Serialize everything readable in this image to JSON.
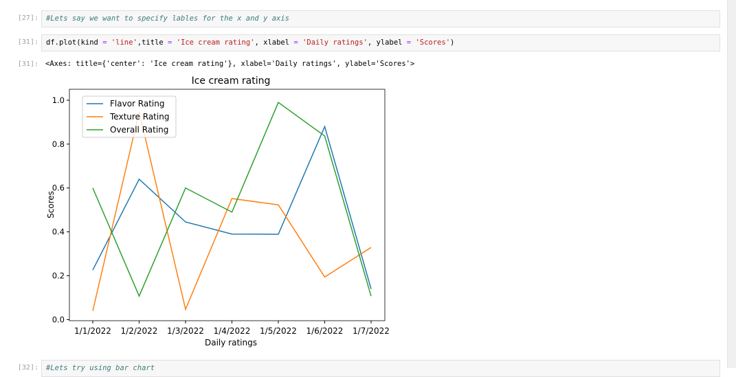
{
  "cells": [
    {
      "prompt": "[27]:",
      "tokens": [
        {
          "text": "#Lets say we want to specify lables for the x and y axis",
          "kind": "comment"
        }
      ]
    },
    {
      "prompt": "[31]:",
      "tokens": [
        {
          "text": "df.plot(kind ",
          "kind": "plain"
        },
        {
          "text": "=",
          "kind": "operator"
        },
        {
          "text": " ",
          "kind": "plain"
        },
        {
          "text": "'line'",
          "kind": "string"
        },
        {
          "text": ",title ",
          "kind": "plain"
        },
        {
          "text": "=",
          "kind": "operator"
        },
        {
          "text": " ",
          "kind": "plain"
        },
        {
          "text": "'Ice cream rating'",
          "kind": "string"
        },
        {
          "text": ", xlabel ",
          "kind": "plain"
        },
        {
          "text": "=",
          "kind": "operator"
        },
        {
          "text": " ",
          "kind": "plain"
        },
        {
          "text": "'Daily ratings'",
          "kind": "string"
        },
        {
          "text": ", ylabel ",
          "kind": "plain"
        },
        {
          "text": "=",
          "kind": "operator"
        },
        {
          "text": " ",
          "kind": "plain"
        },
        {
          "text": "'Scores'",
          "kind": "string"
        },
        {
          "text": ")",
          "kind": "plain"
        }
      ]
    },
    {
      "prompt": "[32]:",
      "tokens": [
        {
          "text": "#Lets try using bar chart",
          "kind": "comment"
        }
      ]
    }
  ],
  "output": {
    "prompt": "[31]:",
    "text": "<Axes: title={'center': 'Ice cream rating'}, xlabel='Daily ratings', ylabel='Scores'>"
  },
  "chart_data": {
    "type": "line",
    "title": "Ice cream rating",
    "xlabel": "Daily ratings",
    "ylabel": "Scores",
    "categories": [
      "1/1/2022",
      "1/2/2022",
      "1/3/2022",
      "1/4/2022",
      "1/5/2022",
      "1/6/2022",
      "1/7/2022"
    ],
    "series": [
      {
        "name": "Flavor Rating",
        "color": "#1f77b4",
        "values": [
          0.226,
          0.64,
          0.445,
          0.39,
          0.389,
          0.88,
          0.14
        ]
      },
      {
        "name": "Texture Rating",
        "color": "#ff7f0e",
        "values": [
          0.04,
          0.947,
          0.047,
          0.552,
          0.523,
          0.194,
          0.329
        ]
      },
      {
        "name": "Overall Rating",
        "color": "#2ca02c",
        "values": [
          0.6,
          0.107,
          0.6,
          0.49,
          0.99,
          0.837,
          0.107
        ]
      }
    ],
    "ylim": [
      -0.005,
      1.05
    ],
    "yticks": [
      {
        "value": 0,
        "label": "0.0"
      },
      0.2,
      0.4,
      0.6,
      0.8,
      {
        "value": 1,
        "label": "1.0"
      }
    ],
    "legend": "upper left",
    "grid": false
  }
}
